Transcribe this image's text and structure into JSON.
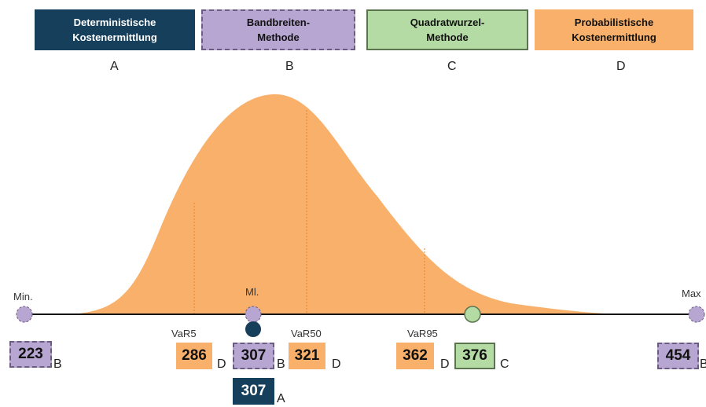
{
  "legend": [
    {
      "lines": [
        "Deterministische",
        "Kostenermittlung"
      ],
      "letter": "A"
    },
    {
      "lines": [
        "Bandbreiten-",
        "Methode"
      ],
      "letter": "B"
    },
    {
      "lines": [
        "Quadratwurzel-",
        "Methode"
      ],
      "letter": "C"
    },
    {
      "lines": [
        "Probabilistische",
        "Kostenermittlung"
      ],
      "letter": "D"
    }
  ],
  "markers": {
    "min": "Min.",
    "ml": "Ml.",
    "max": "Max",
    "var5": "VaR5",
    "var50": "VaR50",
    "var95": "VaR95"
  },
  "boxes": [
    {
      "value": "223",
      "letter": "B"
    },
    {
      "value": "286",
      "letter": "D"
    },
    {
      "value": "307",
      "letter": "B"
    },
    {
      "value": "321",
      "letter": "D"
    },
    {
      "value": "362",
      "letter": "D"
    },
    {
      "value": "376",
      "letter": "C"
    },
    {
      "value": "454",
      "letter": "B"
    },
    {
      "value": "307",
      "letter": "A"
    }
  ]
}
